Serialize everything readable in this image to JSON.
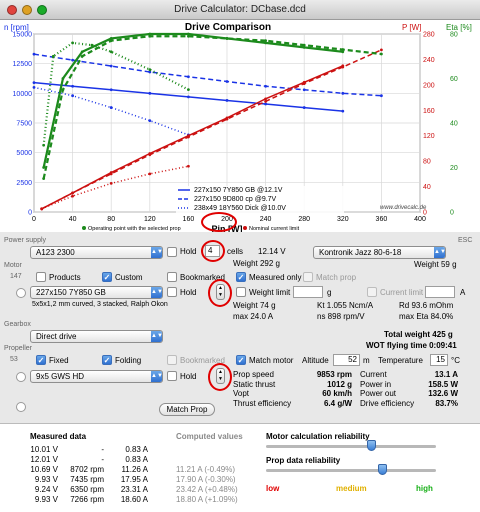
{
  "window": {
    "title": "Drive Calculator: DCbase.dcd"
  },
  "chart_data": {
    "type": "line",
    "title": "Drive Comparison",
    "xlabel": "Pin [W]",
    "ylabel_left": "n [rpm]",
    "ylabel_right": "P [W]",
    "ylabel_right2": "Eta [%]",
    "x_ticks": [
      "0",
      "40",
      "80",
      "120",
      "160",
      "200",
      "240",
      "280",
      "320",
      "360",
      "400"
    ],
    "y_left_ticks": [
      "15000",
      "12500",
      "10000",
      "7500",
      "5000",
      "2500",
      "0"
    ],
    "y_right_ticks": [
      "280",
      "240",
      "200",
      "160",
      "120",
      "80",
      "40",
      "0"
    ],
    "y_right2_ticks": [
      "80",
      "60",
      "40",
      "20",
      "0"
    ],
    "xlim": [
      0,
      400
    ],
    "ylim_left": [
      0,
      15000
    ],
    "ylim_right": [
      0,
      280
    ],
    "ylim_right2": [
      0,
      80
    ],
    "legend": [
      "227x150 7Y850 GB @12.1V",
      "227x150 9D800 cp @9.7V",
      "238x49 18Y560 Dick @10.0V"
    ],
    "footnote_green": "Operating point with the selected prop",
    "footnote_red": "Nominal current limit",
    "watermark": "www.drivecalc.de",
    "series": [
      {
        "name": "227x150 7Y850 GB @12.1V",
        "axis": "rpm",
        "x": [
          0,
          40,
          80,
          120,
          160,
          200,
          240,
          280,
          320
        ],
        "y": [
          10900,
          10600,
          10300,
          10000,
          9700,
          9400,
          9100,
          8800,
          8500
        ]
      },
      {
        "name": "227x150 9D800 cp @9.7V",
        "axis": "rpm",
        "x": [
          0,
          40,
          80,
          120,
          160,
          200,
          240,
          280,
          320,
          360
        ],
        "y": [
          13300,
          12800,
          12300,
          11800,
          11400,
          11000,
          10600,
          10300,
          10000,
          9800
        ]
      },
      {
        "name": "238x49 18Y560 Dick @10.0V",
        "axis": "rpm",
        "x": [
          0,
          40,
          80,
          120,
          160
        ],
        "y": [
          10500,
          9800,
          8800,
          7700,
          6500
        ]
      },
      {
        "name": "227x150 7Y850 GB @12.1V",
        "axis": "power",
        "x": [
          8,
          40,
          80,
          120,
          160,
          200,
          240,
          280,
          320
        ],
        "y": [
          5,
          30,
          62,
          92,
          120,
          148,
          178,
          204,
          230
        ]
      },
      {
        "name": "227x150 9D800 cp @9.7V",
        "axis": "power",
        "x": [
          8,
          40,
          80,
          120,
          160,
          200,
          240,
          280,
          320,
          360
        ],
        "y": [
          5,
          30,
          60,
          90,
          118,
          146,
          174,
          202,
          228,
          255
        ]
      },
      {
        "name": "238x49 18Y560 Dick @10.0V",
        "axis": "power",
        "x": [
          8,
          40,
          80,
          120,
          160
        ],
        "y": [
          5,
          25,
          45,
          60,
          72
        ]
      },
      {
        "name": "227x150 7Y850 GB @12.1V",
        "axis": "eta",
        "x": [
          10,
          30,
          50,
          80,
          120,
          160,
          200,
          240,
          280,
          320
        ],
        "y": [
          20,
          60,
          72,
          78,
          80,
          80,
          78,
          76,
          74,
          72
        ]
      },
      {
        "name": "227x150 9D800 cp @9.7V",
        "axis": "eta",
        "x": [
          10,
          30,
          50,
          80,
          120,
          160,
          200,
          240,
          280,
          320,
          360
        ],
        "y": [
          15,
          55,
          70,
          77,
          79,
          79,
          78,
          77,
          75,
          73,
          71
        ]
      },
      {
        "name": "238x49 18Y560 Dick @10.0V",
        "axis": "eta",
        "x": [
          10,
          20,
          40,
          60,
          80,
          120,
          160
        ],
        "y": [
          30,
          70,
          76,
          75,
          72,
          64,
          55
        ]
      }
    ],
    "colors": {
      "rpm": "#1a33e6",
      "power": "#cc1111",
      "eta": "#1c8a1c"
    }
  },
  "power_supply": {
    "section": "Power supply",
    "battery": "A123 2300",
    "hold": "Hold",
    "cells_value": "4",
    "cells_label": "cells",
    "voltage": "12.14 V",
    "weight": "Weight 292 g",
    "esc_section": "ESC",
    "esc": "Kontronik Jazz 80-6-18",
    "esc_weight": "Weight 59 g"
  },
  "motor": {
    "section": "Motor",
    "count": "147",
    "products": "Products",
    "custom": "Custom",
    "bookmarked": "Bookmarked",
    "measured_only": "Measured only",
    "match_prop": "Match prop",
    "name": "227x150 7Y850 GB",
    "hold": "Hold",
    "weight_limit": "Weight limit",
    "weight_limit_unit": "g",
    "current_limit": "Current limit",
    "current_limit_unit": "A",
    "description": "5x5x1,2 mm curved, 3 stacked, Ralph Okon",
    "weight": "Weight 74 g",
    "kt": "Kt 1.055 Ncm/A",
    "rd": "Rd 93.6 mOhm",
    "max": "max 24.0 A",
    "ns": "ns 898 rpm/V",
    "max_eta": "max Eta 84.0%"
  },
  "gearbox": {
    "section": "Gearbox",
    "drive": "Direct drive",
    "total_weight": "Total weight 425 g",
    "wot": "WOT flying time 0:09:41"
  },
  "propeller": {
    "section": "Propeller",
    "count": "53",
    "fixed": "Fixed",
    "folding": "Folding",
    "bookmarked": "Bookmarked",
    "match_motor": "Match motor",
    "altitude_label": "Altitude",
    "altitude": "52",
    "altitude_unit": "m",
    "temp_label": "Temperature",
    "temp": "15",
    "temp_unit": "°C",
    "name": "9x5 GWS HD",
    "hold": "Hold",
    "match_button": "Match Prop"
  },
  "results": {
    "prop_speed_label": "Prop speed",
    "prop_speed": "9853 rpm",
    "thrust_label": "Static thrust",
    "thrust": "1012 g",
    "vopt_label": "Vopt",
    "vopt": "60 km/h",
    "te_label": "Thrust efficiency",
    "te": "6.4 g/W",
    "current_label": "Current",
    "current": "13.1 A",
    "pin_label": "Power in",
    "pin": "158.5 W",
    "pout_label": "Power out",
    "pout": "132.6 W",
    "eff_label": "Drive efficiency",
    "eff": "83.7%"
  },
  "measured": {
    "title": "Measured data",
    "computed_title": "Computed values",
    "rows": [
      {
        "v": "10.01 V",
        "rpm": "-",
        "a": "0.83 A",
        "c": ""
      },
      {
        "v": "12.01 V",
        "rpm": "-",
        "a": "0.83 A",
        "c": ""
      },
      {
        "v": "10.69 V",
        "rpm": "8702 rpm",
        "a": "11.26 A",
        "c": "11.21 A (-0.49%)"
      },
      {
        "v": "9.93 V",
        "rpm": "7435 rpm",
        "a": "17.95 A",
        "c": "17.90 A (-0.30%)"
      },
      {
        "v": "9.24 V",
        "rpm": "6350 rpm",
        "a": "23.31 A",
        "c": "23.42 A (+0.48%)"
      },
      {
        "v": "9.93 V",
        "rpm": "7266 rpm",
        "a": "18.60 A",
        "c": "18.80 A (+1.09%)"
      }
    ]
  },
  "reliability": {
    "motor_title": "Motor calculation reliability",
    "prop_title": "Prop data reliability",
    "low": "low",
    "medium": "medium",
    "high": "high",
    "motor_level": 0.62,
    "prop_level": 0.68
  }
}
